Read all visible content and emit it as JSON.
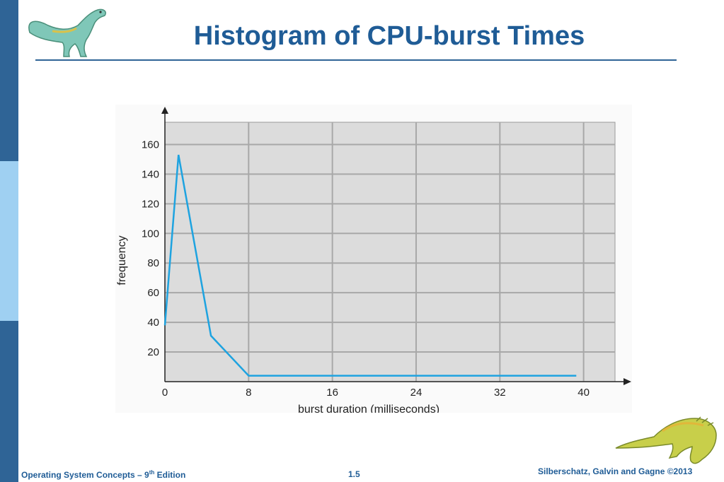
{
  "slide": {
    "title": "Histogram of CPU-burst Times",
    "footer_left": "Operating System Concepts – 9",
    "footer_left_sup": "th",
    "footer_left_tail": " Edition",
    "footer_page": "1.5",
    "footer_right": "Silberschatz, Galvin and Gagne ©2013"
  },
  "colors": {
    "accent": "#1f5c96",
    "sidebar_dark": "#2f6496",
    "sidebar_light": "#9fd0f2",
    "plot_bg": "#dcdcdc",
    "line": "#1ea3e0"
  },
  "chart_data": {
    "type": "line",
    "title": "",
    "xlabel": "burst duration (milliseconds)",
    "ylabel": "frequency",
    "xlim": [
      0,
      43
    ],
    "ylim": [
      0,
      175
    ],
    "x_ticks": [
      0,
      8,
      16,
      24,
      32,
      40
    ],
    "y_ticks": [
      20,
      40,
      60,
      80,
      100,
      120,
      140,
      160
    ],
    "grid": true,
    "series": [
      {
        "x": [
          0,
          1.3,
          4.4,
          8,
          39.3
        ],
        "y": [
          38,
          153,
          31,
          4,
          4
        ]
      }
    ]
  }
}
